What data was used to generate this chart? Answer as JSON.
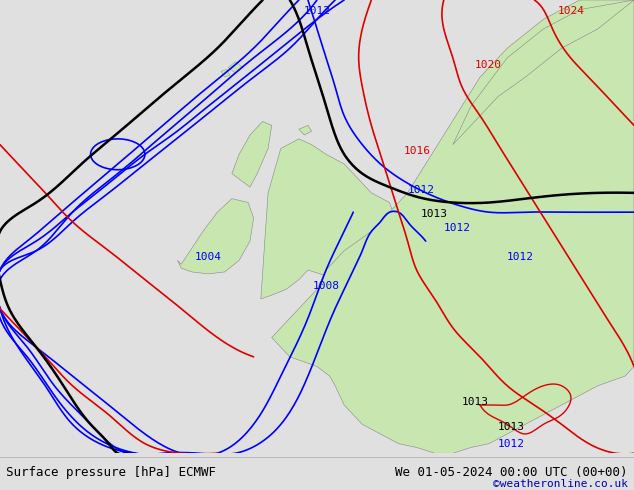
{
  "title_left": "Surface pressure [hPa] ECMWF",
  "title_right": "We 01-05-2024 00:00 UTC (00+00)",
  "credit": "©weatheronline.co.uk",
  "bg_color": "#e0e0e0",
  "land_color": "#c8e6b0",
  "border_color": "#888888",
  "blue": "#0000ff",
  "black": "#000000",
  "red": "#dd0000",
  "fs_label": 8,
  "fs_title": 9,
  "fs_credit": 8,
  "figsize": [
    6.34,
    4.9
  ],
  "dpi": 100,
  "xlim": [
    -20,
    15
  ],
  "ylim": [
    42,
    65.5
  ]
}
